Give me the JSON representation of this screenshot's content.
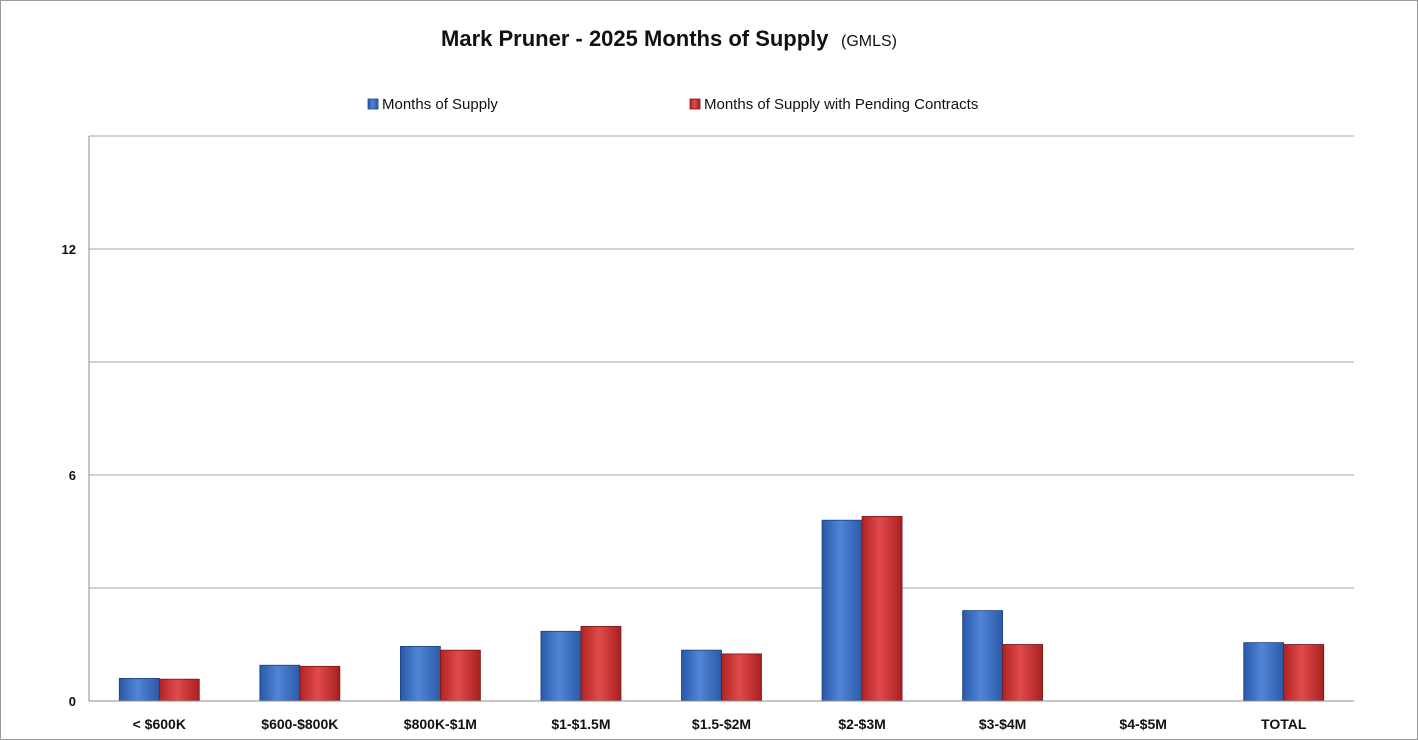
{
  "chart_data": {
    "type": "bar",
    "title": "Mark Pruner - 2025 Months of Supply",
    "subtitle": "(GMLS)",
    "categories": [
      "< $600K",
      "$600-$800K",
      "$800K-$1M",
      "$1-$1.5M",
      "$1.5-$2M",
      "$2-$3M",
      "$3-$4M",
      "$4-$5M",
      "TOTAL"
    ],
    "series": [
      {
        "name": "Months of Supply",
        "color": "#3b6fc4",
        "values": [
          0.6,
          0.95,
          1.45,
          1.85,
          1.35,
          4.8,
          2.4,
          null,
          1.55
        ]
      },
      {
        "name": "Months of Supply with Pending Contracts",
        "color": "#cf3535",
        "values": [
          0.58,
          0.92,
          1.35,
          1.98,
          1.25,
          4.9,
          1.5,
          null,
          1.5
        ]
      }
    ],
    "ylim": [
      0,
      15
    ],
    "yticks": [
      0,
      6,
      12
    ],
    "gridlines": [
      3,
      6,
      9,
      12,
      15
    ],
    "grid": true,
    "legend": "top"
  }
}
